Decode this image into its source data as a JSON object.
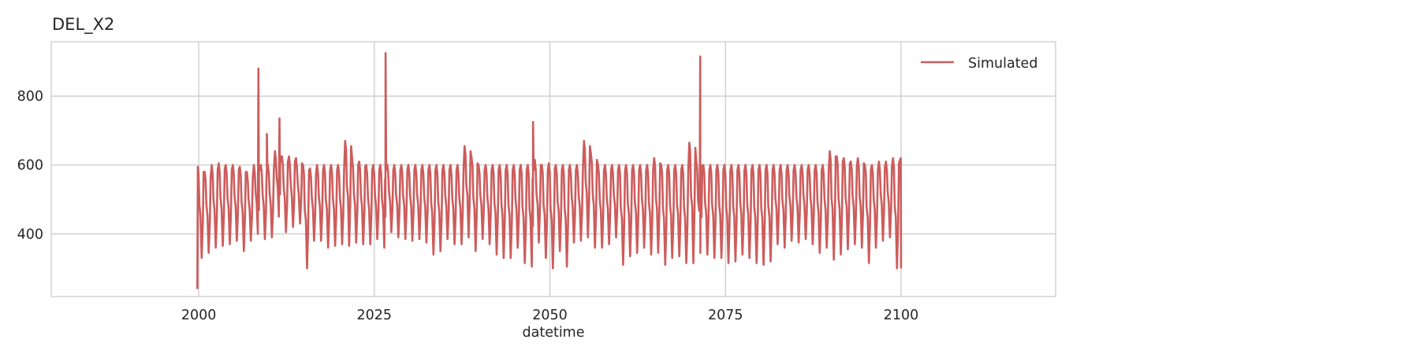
{
  "chart_data": {
    "type": "line",
    "title": "DEL_X2",
    "xlabel": "datetime",
    "ylabel": "",
    "xlim": [
      1979,
      2122
    ],
    "ylim": [
      218,
      958
    ],
    "x_ticks": [
      2000,
      2025,
      2050,
      2075,
      2100
    ],
    "x_tick_labels": [
      "2000",
      "2025",
      "2050",
      "2075",
      "2100"
    ],
    "y_ticks": [
      400,
      600,
      800
    ],
    "y_tick_labels": [
      "400",
      "600",
      "800"
    ],
    "grid": true,
    "legend": {
      "position": "top-right",
      "entries": [
        "Simulated"
      ]
    },
    "series": [
      {
        "name": "Simulated",
        "color": "#cd5c5c",
        "x_start": 1999.8,
        "x_end": 2100.0,
        "cycle_length": 1,
        "peaks": [
          595,
          580,
          600,
          605,
          600,
          600,
          595,
          580,
          600,
          600,
          600,
          640,
          625,
          625,
          620,
          600,
          590,
          600,
          600,
          600,
          600,
          670,
          615,
          610,
          600,
          600,
          600,
          600,
          600,
          600,
          600,
          600,
          600,
          600,
          600,
          600,
          600,
          600,
          655,
          620,
          600,
          600,
          600,
          600,
          600,
          600,
          600,
          600,
          615,
          600,
          605,
          600,
          600,
          600,
          600,
          670,
          630,
          600,
          600,
          600,
          600,
          600,
          600,
          600,
          600,
          620,
          600,
          600,
          600,
          600,
          665,
          610,
          600,
          600,
          600,
          600,
          600,
          600,
          600,
          600,
          600,
          600,
          600,
          600,
          600,
          600,
          600,
          600,
          600,
          600,
          640,
          625,
          620,
          610,
          620,
          600,
          600,
          610,
          610,
          620
        ],
        "troughs": [
          330,
          345,
          360,
          365,
          370,
          380,
          350,
          380,
          400,
          385,
          390,
          450,
          405,
          420,
          430,
          300,
          380,
          380,
          360,
          365,
          370,
          365,
          375,
          370,
          370,
          385,
          360,
          405,
          390,
          385,
          380,
          385,
          375,
          340,
          350,
          385,
          370,
          370,
          390,
          350,
          385,
          370,
          340,
          330,
          330,
          360,
          315,
          305,
          375,
          330,
          300,
          350,
          305,
          375,
          380,
          390,
          360,
          360,
          370,
          390,
          310,
          335,
          345,
          360,
          340,
          345,
          310,
          330,
          335,
          315,
          315,
          345,
          340,
          330,
          330,
          315,
          320,
          340,
          330,
          315,
          310,
          320,
          370,
          360,
          380,
          375,
          385,
          370,
          345,
          360,
          325,
          340,
          355,
          370,
          360,
          315,
          360,
          380,
          390,
          300
        ],
        "spikes": [
          {
            "x": 2008.5,
            "y": 880
          },
          {
            "x": 2009.7,
            "y": 690
          },
          {
            "x": 2011.5,
            "y": 735
          },
          {
            "x": 2026.6,
            "y": 925
          },
          {
            "x": 2047.6,
            "y": 725
          },
          {
            "x": 2071.4,
            "y": 915
          }
        ]
      }
    ]
  }
}
